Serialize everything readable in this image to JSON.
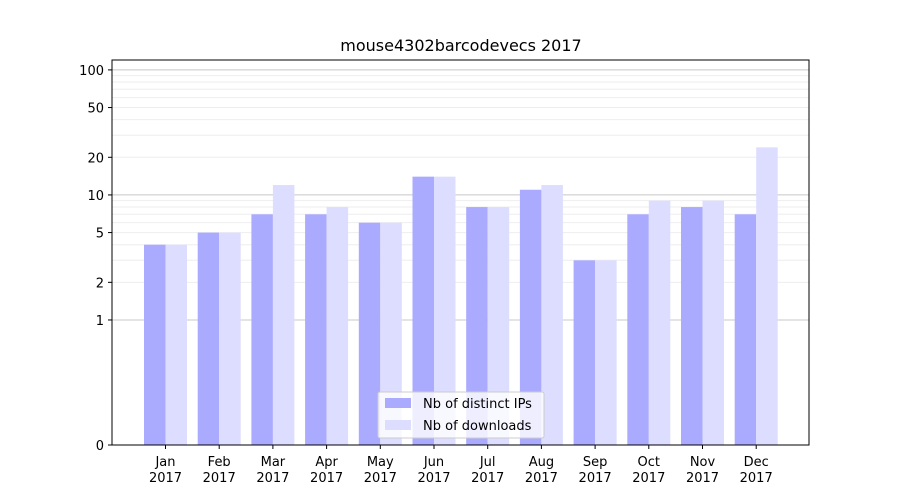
{
  "chart_data": {
    "type": "bar",
    "title": "mouse4302barcodevecs 2017",
    "xlabel": "",
    "ylabel": "",
    "scale": "symlog",
    "categories": [
      [
        "Jan",
        "2017"
      ],
      [
        "Feb",
        "2017"
      ],
      [
        "Mar",
        "2017"
      ],
      [
        "Apr",
        "2017"
      ],
      [
        "May",
        "2017"
      ],
      [
        "Jun",
        "2017"
      ],
      [
        "Jul",
        "2017"
      ],
      [
        "Aug",
        "2017"
      ],
      [
        "Sep",
        "2017"
      ],
      [
        "Oct",
        "2017"
      ],
      [
        "Nov",
        "2017"
      ],
      [
        "Dec",
        "2017"
      ]
    ],
    "series": [
      {
        "name": "Nb of distinct IPs",
        "color": "#aaaaff",
        "values": [
          4,
          5,
          7,
          7,
          6,
          14,
          8,
          11,
          3,
          7,
          8,
          7
        ]
      },
      {
        "name": "Nb of downloads",
        "color": "#ddddff",
        "values": [
          4,
          5,
          12,
          8,
          6,
          14,
          8,
          12,
          3,
          9,
          9,
          24
        ]
      }
    ],
    "yticks": [
      0,
      1,
      2,
      5,
      10,
      20,
      50,
      100
    ],
    "ylim": [
      0,
      120
    ],
    "grid": true,
    "legend": "lower-center"
  }
}
